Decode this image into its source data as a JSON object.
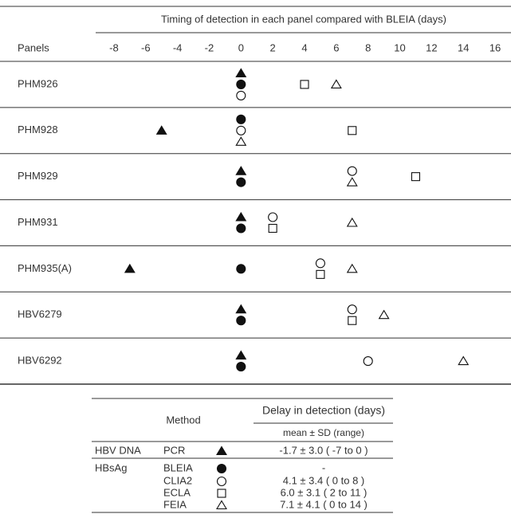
{
  "chart_data": {
    "type": "dot",
    "title": "Timing of detection in each panel compared with BLEIA (days)",
    "row_header": "Panels",
    "categories": [
      "PHM926",
      "PHM928",
      "PHM929",
      "PHM931",
      "PHM935(A)",
      "HBV6279",
      "HBV6292"
    ],
    "xlim": [
      -9,
      17
    ],
    "xticks": [
      -8,
      -6,
      -4,
      -2,
      0,
      2,
      4,
      6,
      8,
      10,
      12,
      14,
      16
    ],
    "color": "#111111",
    "method_header": "Method",
    "delay_header": "Delay in detection (days)",
    "delay_subheader": "mean ± SD (range)",
    "series": [
      {
        "name": "PCR",
        "group": "HBV DNA",
        "marker": "triangle",
        "filled": true,
        "delay": "-1.7 ± 3.0 ( -7 to 0 )",
        "values": [
          0,
          -5,
          0,
          0,
          -7,
          0,
          0
        ]
      },
      {
        "name": "BLEIA",
        "group": "HBsAg",
        "marker": "circle",
        "filled": true,
        "delay": "-",
        "values": [
          0,
          0,
          0,
          0,
          0,
          0,
          0
        ]
      },
      {
        "name": "CLIA2",
        "marker": "circle",
        "filled": false,
        "delay": "4.1 ± 3.4 ( 0 to 8 )",
        "values": [
          0,
          0,
          7,
          2,
          5,
          7,
          8
        ]
      },
      {
        "name": "ECLA",
        "marker": "square",
        "filled": false,
        "delay": "6.0 ± 3.1 ( 2 to 11 )",
        "values": [
          4,
          7,
          11,
          2,
          5,
          7,
          null
        ]
      },
      {
        "name": "FEIA",
        "marker": "triangle",
        "filled": false,
        "delay": "7.1 ± 4.1 ( 0 to 14 )",
        "values": [
          6,
          0,
          7,
          7,
          7,
          9,
          14
        ]
      }
    ]
  }
}
